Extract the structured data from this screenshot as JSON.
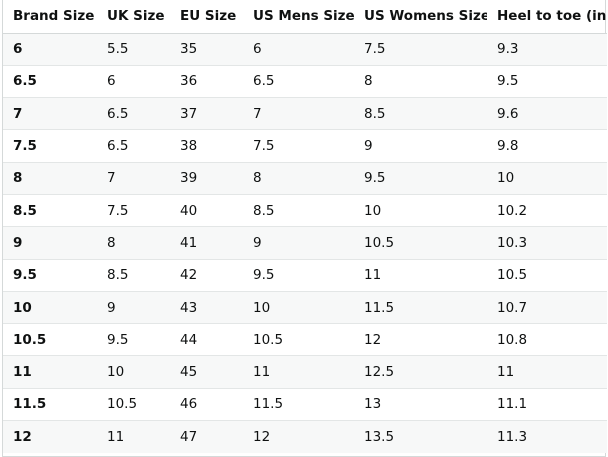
{
  "table": {
    "headers": [
      "Brand Size",
      "UK Size",
      "EU Size",
      "US Mens Size",
      "US Womens Size",
      "Heel to toe (in)"
    ],
    "rows": [
      [
        "6",
        "5.5",
        "35",
        "6",
        "7.5",
        "9.3"
      ],
      [
        "6.5",
        "6",
        "36",
        "6.5",
        "8",
        "9.5"
      ],
      [
        "7",
        "6.5",
        "37",
        "7",
        "8.5",
        "9.6"
      ],
      [
        "7.5",
        "6.5",
        "38",
        "7.5",
        "9",
        "9.8"
      ],
      [
        "8",
        "7",
        "39",
        "8",
        "9.5",
        "10"
      ],
      [
        "8.5",
        "7.5",
        "40",
        "8.5",
        "10",
        "10.2"
      ],
      [
        "9",
        "8",
        "41",
        "9",
        "10.5",
        "10.3"
      ],
      [
        "9.5",
        "8.5",
        "42",
        "9.5",
        "11",
        "10.5"
      ],
      [
        "10",
        "9",
        "43",
        "10",
        "11.5",
        "10.7"
      ],
      [
        "10.5",
        "9.5",
        "44",
        "10.5",
        "12",
        "10.8"
      ],
      [
        "11",
        "10",
        "45",
        "11",
        "12.5",
        "11"
      ],
      [
        "11.5",
        "10.5",
        "46",
        "11.5",
        "13",
        "11.1"
      ],
      [
        "12",
        "11",
        "47",
        "12",
        "13.5",
        "11.3"
      ]
    ]
  }
}
